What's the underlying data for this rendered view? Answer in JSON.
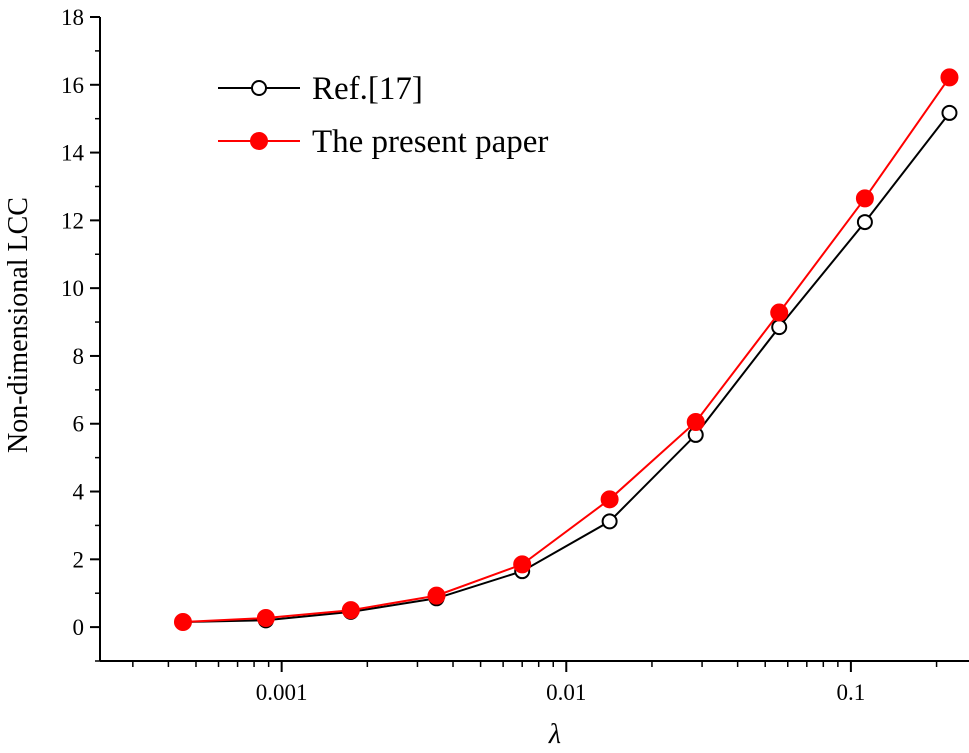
{
  "chart_data": {
    "type": "line",
    "xscale": "log",
    "xlabel": "λ",
    "ylabel": "Non-dimensional LCC",
    "xlim": [
      0.00023,
      0.26
    ],
    "ylim": [
      -1,
      18
    ],
    "xticks": [
      {
        "value": 0.001,
        "label": "0.001"
      },
      {
        "value": 0.01,
        "label": "0.01"
      },
      {
        "value": 0.1,
        "label": "0.1"
      }
    ],
    "yticks": [
      0,
      2,
      4,
      6,
      8,
      10,
      12,
      14,
      16,
      18
    ],
    "legend_position": "top-left",
    "series": [
      {
        "name": "Ref.[17]",
        "color": "#000000",
        "marker": "open-circle",
        "x": [
          0.00045,
          0.00088,
          0.00175,
          0.0035,
          0.007,
          0.0142,
          0.0285,
          0.056,
          0.112,
          0.222
        ],
        "y": [
          0.15,
          0.2,
          0.45,
          0.85,
          1.65,
          3.12,
          5.67,
          8.85,
          11.95,
          15.17
        ]
      },
      {
        "name": "The present paper",
        "color": "#ff0000",
        "marker": "filled-circle",
        "x": [
          0.00045,
          0.00088,
          0.00175,
          0.0035,
          0.007,
          0.0142,
          0.0285,
          0.056,
          0.112,
          0.222
        ],
        "y": [
          0.15,
          0.27,
          0.5,
          0.93,
          1.85,
          3.77,
          6.05,
          9.28,
          12.65,
          16.22
        ]
      }
    ]
  }
}
